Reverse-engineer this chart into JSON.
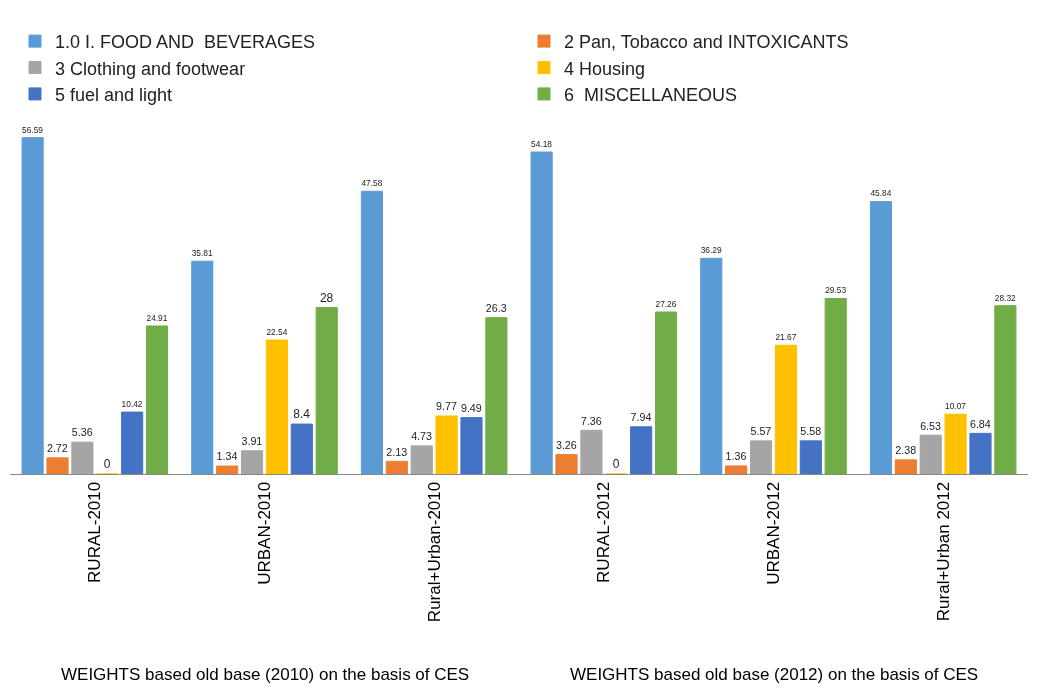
{
  "chart_data": {
    "type": "bar",
    "categories": [
      "RURAL-2010",
      "URBAN-2010",
      "Rural+Urban-2010",
      "RURAL-2012",
      "URBAN-2012",
      "Rural+Urban 2012"
    ],
    "series": [
      {
        "name": "1.0 I. FOOD AND  BEVERAGES",
        "color": "#5b9bd5",
        "values": [
          56.59,
          35.81,
          47.58,
          54.18,
          36.29,
          45.84
        ]
      },
      {
        "name": "2 Pan, Tobacco and INTOXICANTS",
        "color": "#ed7d31",
        "values": [
          2.72,
          1.34,
          2.13,
          3.26,
          1.36,
          2.38
        ]
      },
      {
        "name": "3 Clothing and footwear",
        "color": "#a5a5a5",
        "values": [
          5.36,
          3.91,
          4.73,
          7.36,
          5.57,
          6.53
        ]
      },
      {
        "name": "4 Housing",
        "color": "#ffc000",
        "values": [
          0,
          22.54,
          9.77,
          0,
          21.67,
          10.07
        ]
      },
      {
        "name": "5 fuel and light",
        "color": "#4472c4",
        "values": [
          10.42,
          8.4,
          9.49,
          7.94,
          5.58,
          6.84
        ]
      },
      {
        "name": "6  MISCELLANEOUS",
        "color": "#70ad47",
        "values": [
          24.91,
          28,
          26.3,
          27.26,
          29.53,
          28.32
        ]
      }
    ],
    "data_labels": true,
    "legend": "top",
    "tick_labels": "x",
    "annotations": [
      "WEIGHTS based old base (2010) on the basis of CES",
      "WEIGHTS based old base (2012) on the basis of CES"
    ]
  }
}
